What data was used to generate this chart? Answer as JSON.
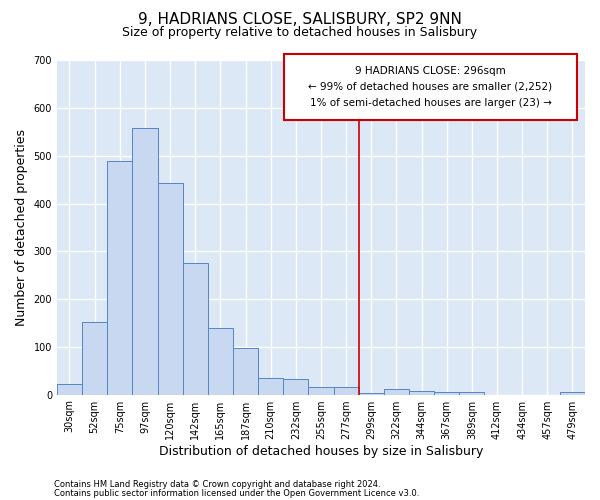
{
  "title": "9, HADRIANS CLOSE, SALISBURY, SP2 9NN",
  "subtitle": "Size of property relative to detached houses in Salisbury",
  "xlabel": "Distribution of detached houses by size in Salisbury",
  "ylabel": "Number of detached properties",
  "footer_line1": "Contains HM Land Registry data © Crown copyright and database right 2024.",
  "footer_line2": "Contains public sector information licensed under the Open Government Licence v3.0.",
  "bar_labels": [
    "30sqm",
    "52sqm",
    "75sqm",
    "97sqm",
    "120sqm",
    "142sqm",
    "165sqm",
    "187sqm",
    "210sqm",
    "232sqm",
    "255sqm",
    "277sqm",
    "299sqm",
    "322sqm",
    "344sqm",
    "367sqm",
    "389sqm",
    "412sqm",
    "434sqm",
    "457sqm",
    "479sqm"
  ],
  "bar_values": [
    22,
    152,
    490,
    558,
    442,
    275,
    140,
    97,
    35,
    33,
    15,
    15,
    3,
    12,
    7,
    6,
    5,
    0,
    0,
    0,
    6
  ],
  "bar_color": "#c8d8f0",
  "bar_edge_color": "#5585c8",
  "ylim": [
    0,
    700
  ],
  "yticks": [
    0,
    100,
    200,
    300,
    400,
    500,
    600,
    700
  ],
  "vline_x_index": 12,
  "vline_color": "#cc0000",
  "annotation_text": "9 HADRIANS CLOSE: 296sqm\n← 99% of detached houses are smaller (2,252)\n1% of semi-detached houses are larger (23) →",
  "annotation_box_color": "#cc0000",
  "bg_color": "#dce8f5",
  "grid_color": "#ffffff",
  "title_fontsize": 11,
  "subtitle_fontsize": 9,
  "tick_fontsize": 7,
  "ylabel_fontsize": 9,
  "xlabel_fontsize": 9
}
